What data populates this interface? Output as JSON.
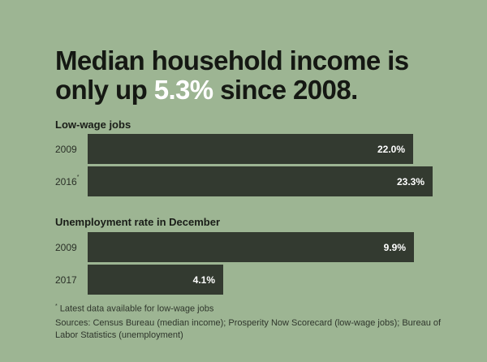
{
  "title": {
    "part1": "Median household income is",
    "part2": "only up ",
    "highlight": "5.3%",
    "part3": " since 2008."
  },
  "colors": {
    "background": "#9db593",
    "bar": "#333a30",
    "highlight": "#ffffff"
  },
  "chart_data": [
    {
      "type": "bar",
      "orientation": "horizontal",
      "title": "Low-wage jobs",
      "categories": [
        "2009",
        "2016"
      ],
      "category_marks": [
        "",
        "*"
      ],
      "values": [
        22.0,
        23.3
      ],
      "value_labels": [
        "22.0%",
        "23.3%"
      ],
      "unit": "%",
      "xlim": [
        0,
        25.3
      ]
    },
    {
      "type": "bar",
      "orientation": "horizontal",
      "title": "Unemployment rate in December",
      "categories": [
        "2009",
        "2017"
      ],
      "category_marks": [
        "",
        ""
      ],
      "values": [
        9.9,
        4.1
      ],
      "value_labels": [
        "9.9%",
        "4.1%"
      ],
      "unit": "%",
      "xlim": [
        0,
        11.35
      ]
    }
  ],
  "footnote": {
    "mark": "*",
    "text": " Latest data available for low-wage jobs"
  },
  "sources": "Sources: Census Bureau (median income); Prosperity Now Scorecard (low-wage jobs); Bureau of Labor Statistics (unemployment)"
}
